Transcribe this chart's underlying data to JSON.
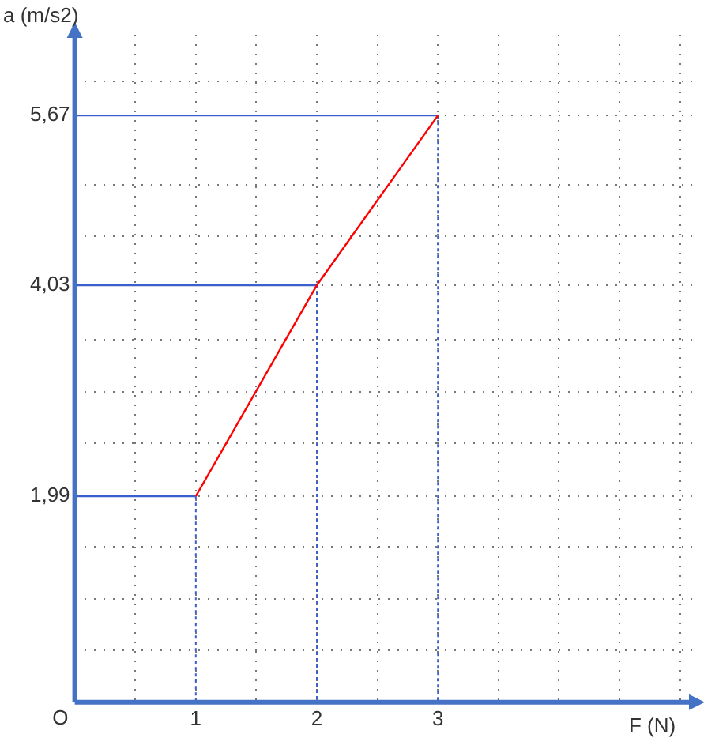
{
  "chart_data": {
    "type": "line",
    "xlabel": "F (N)",
    "ylabel": "a (m/s2)",
    "x": [
      1,
      2,
      3
    ],
    "series": [
      {
        "color": "#ff0000",
        "values": [
          1.99,
          4.03,
          5.67
        ]
      },
      {
        "color": "#3a5fcd",
        "x": [
          0,
          1
        ],
        "values": [
          1.99,
          1.99
        ]
      },
      {
        "color": "#3a5fcd",
        "x": [
          0,
          2
        ],
        "values": [
          4.03,
          4.03
        ]
      },
      {
        "color": "#3a5fcd",
        "x": [
          0,
          3
        ],
        "values": [
          5.67,
          5.67
        ]
      },
      {
        "color": "#3a5fcd",
        "x": [
          1,
          1
        ],
        "values": [
          1.99,
          0
        ],
        "line_style": "dashed"
      },
      {
        "color": "#3a5fcd",
        "x": [
          2,
          2
        ],
        "values": [
          4.03,
          0
        ],
        "line_style": "dashed"
      },
      {
        "color": "#3a5fcd",
        "x": [
          3,
          3
        ],
        "values": [
          5.67,
          0
        ],
        "line_style": "dashed"
      }
    ],
    "xlim": [
      0,
      5.1
    ],
    "ylim": [
      0,
      6.45
    ],
    "xticks": [
      {
        "value": 0.5,
        "label": null
      },
      1,
      {
        "value": 1.5,
        "label": null
      },
      2,
      {
        "value": 2.5,
        "label": null
      },
      3,
      {
        "value": 3.5,
        "label": null
      },
      {
        "value": 4,
        "label": null
      },
      {
        "value": 4.5,
        "label": null
      },
      {
        "value": 5,
        "label": null
      }
    ],
    "yticks": [
      {
        "value": 0.5,
        "label": null
      },
      {
        "value": 1,
        "label": null
      },
      {
        "value": 1.5,
        "label": null
      },
      {
        "value": 1.99,
        "label": "1,99"
      },
      {
        "value": 2.5,
        "label": null
      },
      {
        "value": 3,
        "label": null
      },
      {
        "value": 3.5,
        "label": null
      },
      {
        "value": 4.03,
        "label": "4,03"
      },
      {
        "value": 4.5,
        "label": null
      },
      {
        "value": 5,
        "label": null
      },
      {
        "value": 5.67,
        "label": "5,67"
      },
      {
        "value": 6,
        "label": null
      }
    ],
    "annotations": [
      "O"
    ],
    "grid": true,
    "legend": false,
    "marker": "none",
    "line_style": "solid"
  }
}
